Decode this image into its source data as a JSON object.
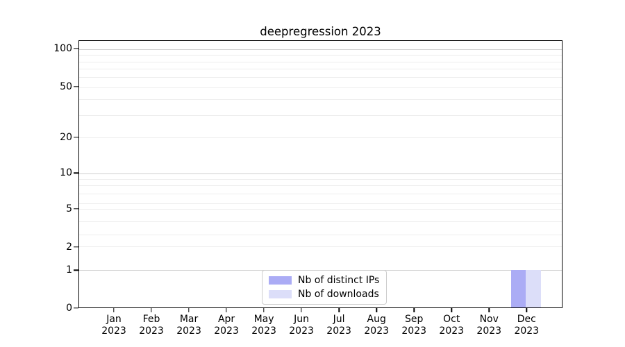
{
  "figure": {
    "background": "#ffffff"
  },
  "chart_data": {
    "type": "bar",
    "title": "deepregression 2023",
    "categories": [
      "Jan 2023",
      "Feb 2023",
      "Mar 2023",
      "Apr 2023",
      "May 2023",
      "Jun 2023",
      "Jul 2023",
      "Aug 2023",
      "Sep 2023",
      "Oct 2023",
      "Nov 2023",
      "Dec 2023"
    ],
    "series": [
      {
        "name": "Nb of distinct IPs",
        "color": "#abacf5",
        "values": [
          0,
          0,
          0,
          0,
          0,
          0,
          0,
          0,
          0,
          0,
          0,
          1
        ]
      },
      {
        "name": "Nb of downloads",
        "color": "#dcdef9",
        "values": [
          0,
          0,
          0,
          0,
          0,
          0,
          0,
          0,
          0,
          0,
          0,
          1
        ]
      }
    ],
    "xlabel": "",
    "ylabel": "",
    "yscale": "log-like",
    "y_tick_values": [
      0,
      1,
      2,
      5,
      10,
      20,
      50,
      100
    ],
    "ylim": [
      0,
      110
    ],
    "grid": "horizontal major and minor gridlines",
    "legend_position": "inside lower-center"
  },
  "y_axis": {
    "tick_labels": [
      {
        "value": "0",
        "f": 1.0
      },
      {
        "value": "1",
        "f": 0.8588
      },
      {
        "value": "2",
        "f": 0.772
      },
      {
        "value": "5",
        "f": 0.6295
      },
      {
        "value": "10",
        "f": 0.4961
      },
      {
        "value": "20",
        "f": 0.3627
      },
      {
        "value": "50",
        "f": 0.1736
      },
      {
        "value": "100",
        "f": 0.0311
      }
    ],
    "major_gridlines": [
      {
        "value": "1",
        "f": 0.8588
      },
      {
        "value": "10",
        "f": 0.4961
      },
      {
        "value": "100",
        "f": 0.0311
      }
    ],
    "minor_gridlines": [
      {
        "value": "2",
        "f": 0.772
      },
      {
        "value": "3",
        "f": 0.7267
      },
      {
        "value": "4",
        "f": 0.6762
      },
      {
        "value": "5",
        "f": 0.6295
      },
      {
        "value": "6",
        "f": 0.6088
      },
      {
        "value": "7",
        "f": 0.5738
      },
      {
        "value": "8",
        "f": 0.5427
      },
      {
        "value": "9",
        "f": 0.5181
      },
      {
        "value": "20",
        "f": 0.3627
      },
      {
        "value": "30",
        "f": 0.279
      },
      {
        "value": "40",
        "f": 0.2197
      },
      {
        "value": "50",
        "f": 0.1736
      },
      {
        "value": "60",
        "f": 0.136
      },
      {
        "value": "70",
        "f": 0.1044
      },
      {
        "value": "80",
        "f": 0.0769
      },
      {
        "value": "90",
        "f": 0.0528
      }
    ]
  },
  "x_axis": {
    "bar_width_f": 0.0309,
    "ticks": [
      {
        "month": "Jan",
        "year": "2023",
        "f": 0.0732
      },
      {
        "month": "Feb",
        "year": "2023",
        "f": 0.1507
      },
      {
        "month": "Mar",
        "year": "2023",
        "f": 0.2282
      },
      {
        "month": "Apr",
        "year": "2023",
        "f": 0.3057
      },
      {
        "month": "May",
        "year": "2023",
        "f": 0.3832
      },
      {
        "month": "Jun",
        "year": "2023",
        "f": 0.4607
      },
      {
        "month": "Jul",
        "year": "2023",
        "f": 0.5382
      },
      {
        "month": "Aug",
        "year": "2023",
        "f": 0.6158
      },
      {
        "month": "Sep",
        "year": "2023",
        "f": 0.6933
      },
      {
        "month": "Oct",
        "year": "2023",
        "f": 0.7708
      },
      {
        "month": "Nov",
        "year": "2023",
        "f": 0.09258,
        "unused": true
      },
      {
        "month": "Dec",
        "year": "2023",
        "f": 0.9258
      }
    ]
  },
  "legend": {
    "entries": [
      {
        "label": "Nb of distinct IPs",
        "color": "#abacf5"
      },
      {
        "label": "Nb of downloads",
        "color": "#dcdef9"
      }
    ],
    "border_color": "#cccccc"
  },
  "colors": {
    "spine": "#000000",
    "major_grid": "#cfcfcf",
    "minor_grid": "#ededed",
    "text": "#000000"
  }
}
